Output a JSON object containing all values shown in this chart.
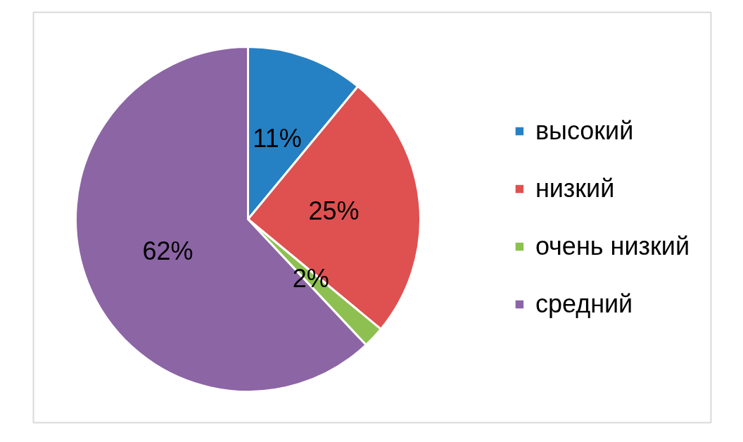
{
  "chart_data": {
    "type": "pie",
    "categories": [
      "высокий",
      "низкий",
      "очень низкий",
      "средний"
    ],
    "values": [
      11,
      25,
      2,
      62
    ],
    "colors": [
      "#2581c4",
      "#de5150",
      "#8dc051",
      "#8c65a5"
    ],
    "value_labels": [
      "11%",
      "25%",
      "2%",
      "62%"
    ],
    "legend": "right"
  }
}
